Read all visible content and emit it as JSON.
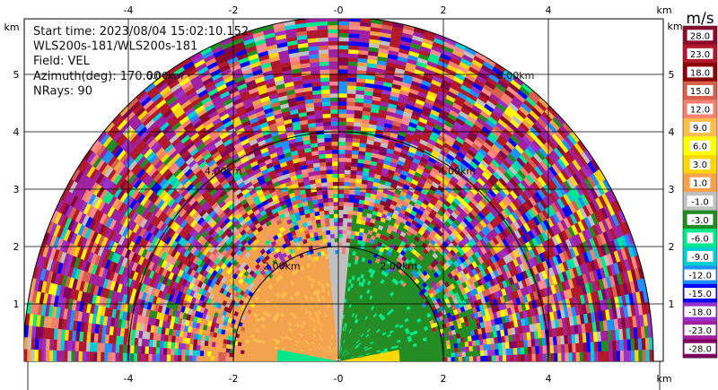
{
  "chart_data": {
    "type": "heatmap",
    "subtype": "PPI radar scan (upper half)",
    "info": [
      {
        "label": "Start time",
        "value": "2023/08/04 15:02:10.152"
      },
      {
        "label": "",
        "value": "WLS200s-181/WLS200s-181"
      },
      {
        "label": "Field",
        "value": "VEL"
      },
      {
        "label": "Azimuth(deg)",
        "value": "170.00"
      },
      {
        "label": "NRays",
        "value": "90"
      }
    ],
    "x_unit": "km",
    "y_unit": "km",
    "xlim": [
      -6,
      6
    ],
    "ylim": [
      0,
      5.8
    ],
    "x_ticks": [
      -4,
      -2,
      0,
      2,
      4
    ],
    "x_tick_labels": [
      "-4",
      "-2",
      "-0",
      "2",
      "4"
    ],
    "y_ticks": [
      1,
      2,
      3,
      4,
      5
    ],
    "y_tick_labels": [
      "1",
      "2",
      "3",
      "4",
      "5"
    ],
    "range_rings_km": [
      2,
      4,
      6
    ],
    "range_ring_labels": [
      "2.00km",
      "4.00km",
      "6.00km"
    ],
    "max_range_km": 6.0,
    "colorbar": {
      "unit": "m/s",
      "labels": [
        "28.0",
        "23.0",
        "18.0",
        "15.0",
        "12.0",
        "9.0",
        "6.0",
        "3.0",
        "1.0",
        "-1.0",
        "-3.0",
        "-6.0",
        "-9.0",
        "-12.0",
        "-15.0",
        "-18.0",
        "-23.0",
        "-28.0"
      ],
      "colors": [
        "#8b0a2a",
        "#b2182b",
        "#8b0000",
        "#d6604d",
        "#f4806d",
        "#ffbd4c",
        "#ffff00",
        "#ffd700",
        "#f4a14c",
        "#c0c0c0",
        "#228b22",
        "#00e88a",
        "#00ced1",
        "#1e90ff",
        "#0000ff",
        "#9932cc",
        "#a020a0",
        "#800060"
      ]
    }
  }
}
